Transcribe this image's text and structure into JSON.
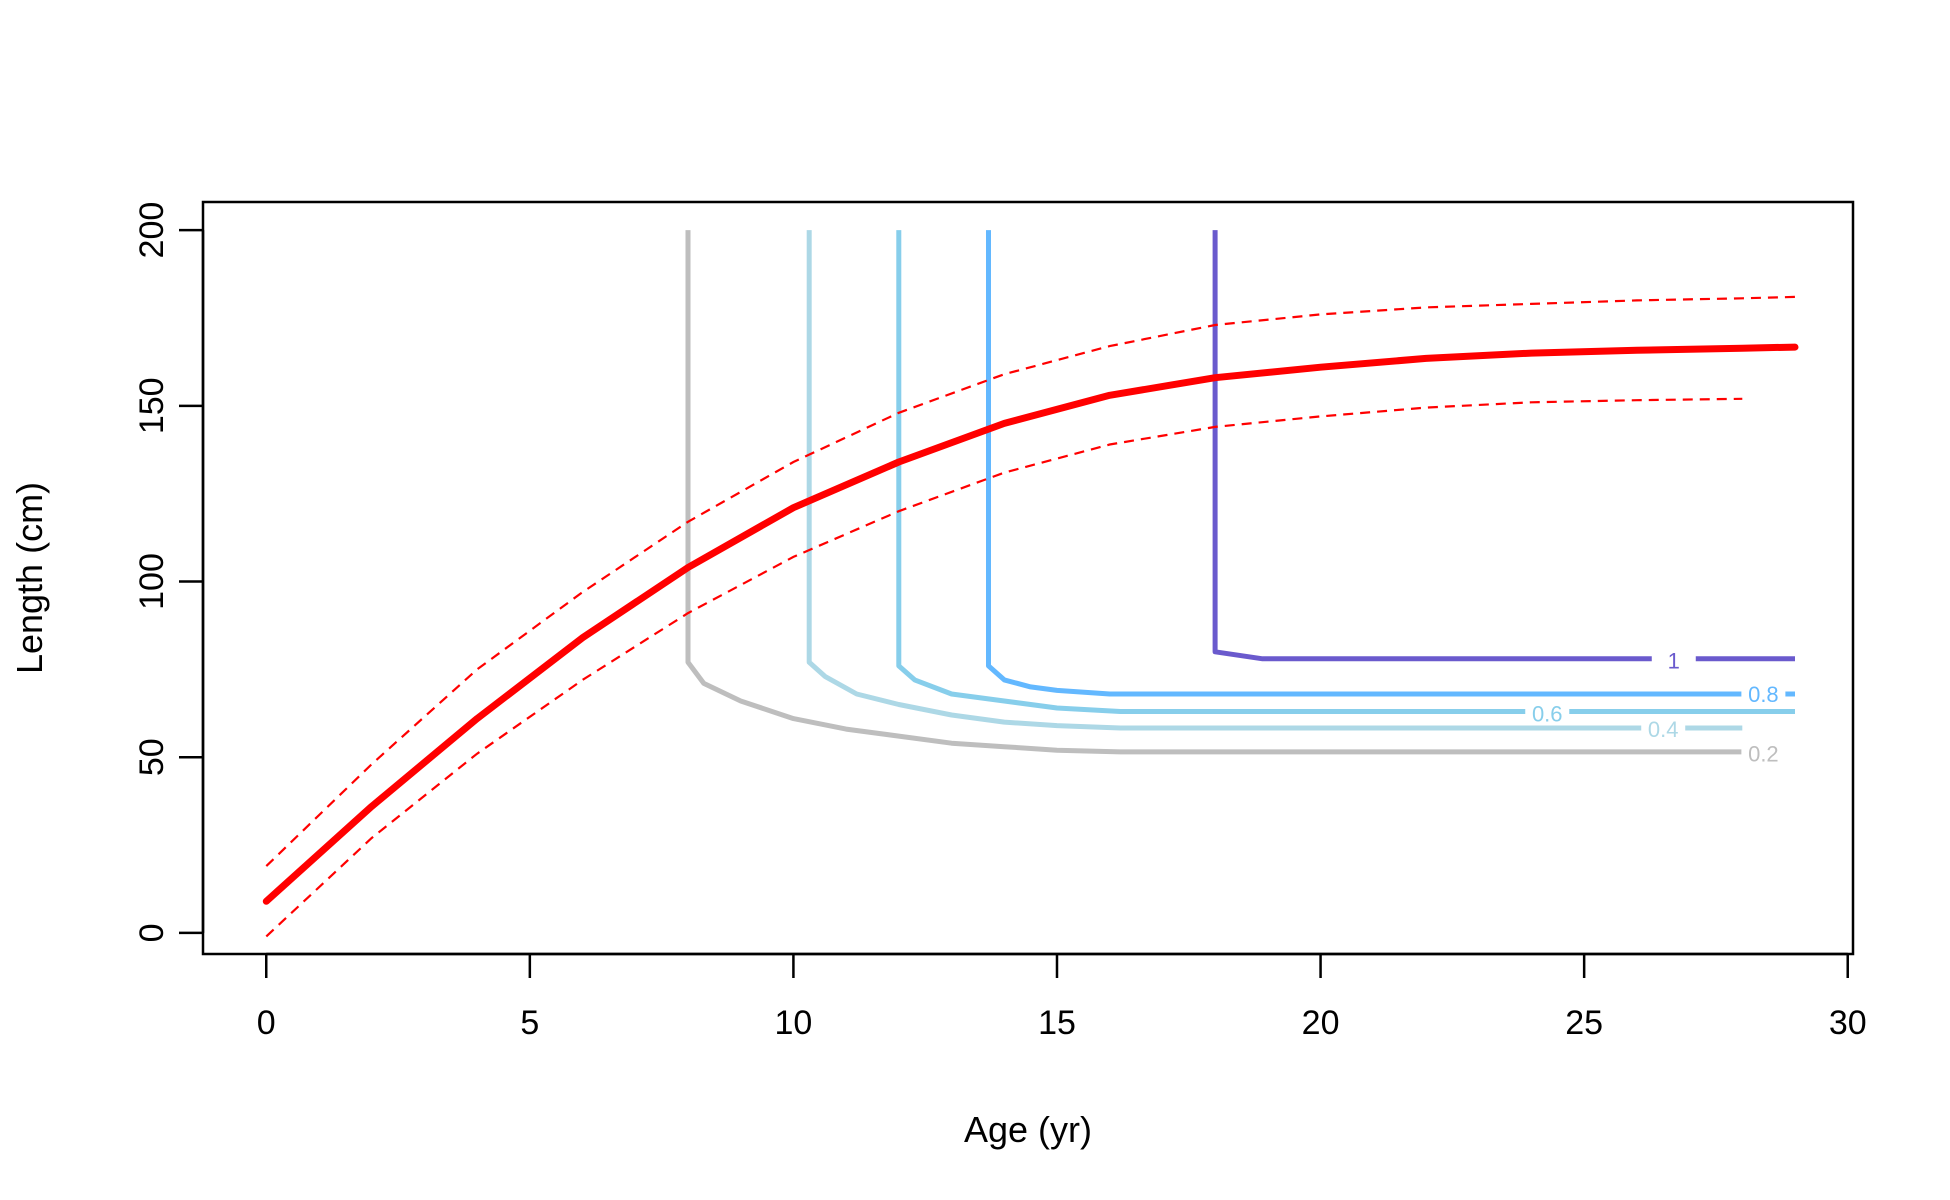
{
  "chart_data": {
    "type": "line",
    "xlabel": "Age (yr)",
    "ylabel": "Length (cm)",
    "xlim": [
      -1.2,
      30.1
    ],
    "ylim": [
      -6,
      208
    ],
    "xticks": [
      0,
      5,
      10,
      15,
      20,
      25,
      30
    ],
    "yticks": [
      0,
      50,
      100,
      150,
      200
    ],
    "grid": false,
    "growth_curve": {
      "color": "#ff0000",
      "x": [
        0,
        2,
        4,
        6,
        8,
        10,
        12,
        14,
        16,
        18,
        20,
        22,
        24,
        26,
        28,
        29
      ],
      "y": [
        9,
        36,
        61,
        84,
        104,
        121,
        134,
        145,
        153,
        158,
        161,
        163.5,
        165,
        165.8,
        166.4,
        166.7
      ]
    },
    "upper_bound": {
      "color": "#ff0000",
      "x": [
        0,
        2,
        4,
        6,
        8,
        10,
        12,
        14,
        16,
        18,
        20,
        22,
        24,
        26,
        28,
        29
      ],
      "y": [
        19,
        48,
        75,
        97,
        117,
        134,
        148,
        159,
        167,
        173,
        176,
        178,
        179,
        180,
        180.6,
        181
      ]
    },
    "lower_bound": {
      "color": "#ff0000",
      "x": [
        0,
        2,
        4,
        6,
        8,
        10,
        12,
        14,
        16,
        18,
        20,
        22,
        24,
        26,
        28
      ],
      "y": [
        -1,
        27,
        51,
        72,
        91,
        107,
        120,
        131,
        139,
        144,
        147,
        149.5,
        151,
        151.6,
        152
      ]
    },
    "contours": [
      {
        "label": "0.2",
        "color": "#bebebe",
        "label_x": 28.4,
        "label_y": 51,
        "x": [
          8,
          8,
          8.3,
          9,
          10,
          11,
          12,
          13,
          14,
          15,
          16.2,
          28
        ],
        "y": [
          200,
          77,
          71,
          66,
          61,
          58,
          56,
          54,
          53,
          52,
          51.5,
          51.5
        ]
      },
      {
        "label": "0.4",
        "color": "#add8e6",
        "label_x": 26.5,
        "label_y": 58,
        "x": [
          10.3,
          10.3,
          10.6,
          11.2,
          12,
          13,
          14,
          15,
          16.2,
          28
        ],
        "y": [
          200,
          77,
          73,
          68,
          65,
          62,
          60,
          59,
          58.3,
          58.3
        ]
      },
      {
        "label": "0.6",
        "color": "#87ceeb",
        "label_x": 24.3,
        "label_y": 62.5,
        "x": [
          12,
          12,
          12.3,
          13,
          14,
          15,
          16.2,
          29
        ],
        "y": [
          200,
          76,
          72,
          68,
          66,
          64,
          63,
          63
        ]
      },
      {
        "label": "0.8",
        "color": "#63b8ff",
        "label_x": 28.4,
        "label_y": 68,
        "x": [
          13.7,
          13.7,
          14,
          14.5,
          15,
          16,
          29
        ],
        "y": [
          200,
          76,
          72,
          70,
          69,
          68,
          68
        ]
      },
      {
        "label": "1",
        "color": "#6a5acd",
        "label_x": 26.7,
        "label_y": 77.5,
        "x": [
          18,
          18,
          18.9,
          29
        ],
        "y": [
          200,
          80,
          78,
          78
        ]
      }
    ]
  }
}
